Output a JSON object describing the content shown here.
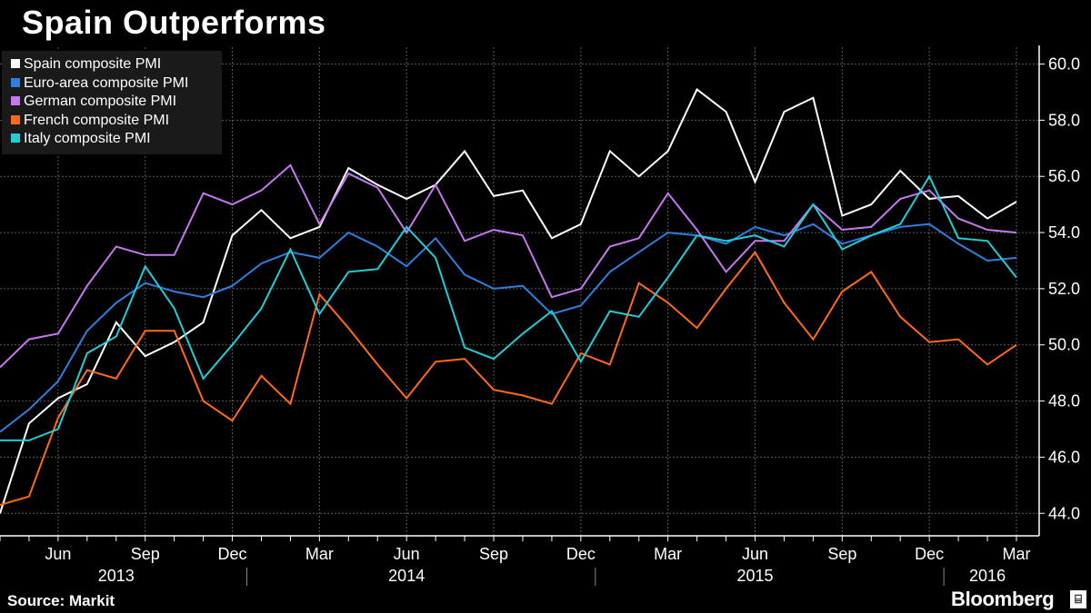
{
  "title": "Spain Outperforms",
  "source": "Source: Markit",
  "brand": "Bloomberg",
  "brand_icon": "bloomberg-terminal-icon",
  "colors": {
    "background": "#000000",
    "grid": "#5a5a5a",
    "axis": "#ffffff"
  },
  "chart_data": {
    "type": "line",
    "x": [
      "2013-04",
      "2013-05",
      "2013-06",
      "2013-07",
      "2013-08",
      "2013-09",
      "2013-10",
      "2013-11",
      "2013-12",
      "2014-01",
      "2014-02",
      "2014-03",
      "2014-04",
      "2014-05",
      "2014-06",
      "2014-07",
      "2014-08",
      "2014-09",
      "2014-10",
      "2014-11",
      "2014-12",
      "2015-01",
      "2015-02",
      "2015-03",
      "2015-04",
      "2015-05",
      "2015-06",
      "2015-07",
      "2015-08",
      "2015-09",
      "2015-10",
      "2015-11",
      "2015-12",
      "2016-01",
      "2016-02",
      "2016-03"
    ],
    "x_tick_labels": [
      "Jun",
      "Sep",
      "Dec",
      "Mar",
      "Jun",
      "Sep",
      "Dec",
      "Mar",
      "Jun",
      "Sep",
      "Dec",
      "Mar"
    ],
    "x_tick_months": [
      "2013-06",
      "2013-09",
      "2013-12",
      "2014-03",
      "2014-06",
      "2014-09",
      "2014-12",
      "2015-03",
      "2015-06",
      "2015-09",
      "2015-12",
      "2016-03"
    ],
    "year_labels": [
      {
        "label": "2013",
        "month": "2013-08"
      },
      {
        "label": "2014",
        "month": "2014-06"
      },
      {
        "label": "2015",
        "month": "2015-06"
      },
      {
        "label": "2016",
        "month": "2016-02"
      }
    ],
    "year_dividers": [
      "2014-01",
      "2015-01",
      "2016-01"
    ],
    "ylim": [
      43.2,
      60.6
    ],
    "yticks": [
      44.0,
      46.0,
      48.0,
      50.0,
      52.0,
      54.0,
      56.0,
      58.0,
      60.0
    ],
    "ytick_labels": [
      "44.0",
      "46.0",
      "48.0",
      "50.0",
      "52.0",
      "54.0",
      "56.0",
      "58.0",
      "60.0"
    ],
    "grid": true,
    "legend_position": "top-left",
    "series": [
      {
        "name": "Spain composite PMI",
        "color": "#ffffff",
        "values": [
          44.0,
          47.2,
          48.1,
          48.6,
          50.8,
          49.6,
          50.1,
          50.8,
          53.9,
          54.8,
          53.8,
          54.2,
          56.3,
          55.7,
          55.2,
          55.7,
          56.9,
          55.3,
          55.5,
          53.8,
          54.3,
          56.9,
          56.0,
          56.9,
          59.1,
          58.3,
          55.8,
          58.3,
          58.8,
          54.6,
          55.0,
          56.2,
          55.2,
          55.3,
          54.5,
          55.1
        ]
      },
      {
        "name": "Euro-area composite PMI",
        "color": "#2f7fe0",
        "values": [
          46.9,
          47.7,
          48.7,
          50.5,
          51.5,
          52.2,
          51.9,
          51.7,
          52.1,
          52.9,
          53.3,
          53.1,
          54.0,
          53.5,
          52.8,
          53.8,
          52.5,
          52.0,
          52.1,
          51.1,
          51.4,
          52.6,
          53.3,
          54.0,
          53.9,
          53.6,
          54.2,
          53.9,
          54.3,
          53.6,
          53.9,
          54.2,
          54.3,
          53.6,
          53.0,
          53.1
        ]
      },
      {
        "name": "German composite PMI",
        "color": "#c678f0",
        "values": [
          49.2,
          50.2,
          50.4,
          52.1,
          53.5,
          53.2,
          53.2,
          55.4,
          55.0,
          55.5,
          56.4,
          54.3,
          56.1,
          55.6,
          54.0,
          55.7,
          53.7,
          54.1,
          53.9,
          51.7,
          52.0,
          53.5,
          53.8,
          55.4,
          54.1,
          52.6,
          53.7,
          53.7,
          55.0,
          54.1,
          54.2,
          55.2,
          55.5,
          54.5,
          54.1,
          54.0
        ]
      },
      {
        "name": "French composite PMI",
        "color": "#ff6a1a",
        "values": [
          44.3,
          44.6,
          47.4,
          49.1,
          48.8,
          50.5,
          50.5,
          48.0,
          47.3,
          48.9,
          47.9,
          51.8,
          50.6,
          49.3,
          48.1,
          49.4,
          49.5,
          48.4,
          48.2,
          47.9,
          49.7,
          49.3,
          52.2,
          51.5,
          50.6,
          52.0,
          53.3,
          51.5,
          50.2,
          51.9,
          52.6,
          51.0,
          50.1,
          50.2,
          49.3,
          50.0
        ]
      },
      {
        "name": "Italy composite PMI",
        "color": "#1ecfd6",
        "values": [
          46.6,
          46.6,
          47.0,
          49.7,
          50.3,
          52.8,
          51.3,
          48.8,
          50.0,
          51.3,
          53.4,
          51.1,
          52.6,
          52.7,
          54.2,
          53.1,
          49.9,
          49.5,
          50.4,
          51.2,
          49.4,
          51.2,
          51.0,
          52.4,
          53.9,
          53.7,
          53.9,
          53.5,
          55.0,
          53.4,
          53.9,
          54.3,
          56.0,
          53.8,
          53.7,
          52.4
        ]
      }
    ]
  }
}
